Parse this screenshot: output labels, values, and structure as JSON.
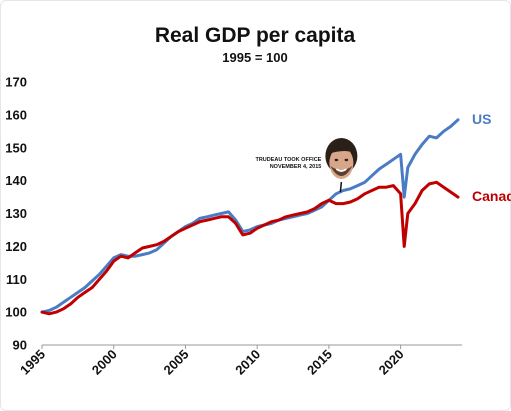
{
  "chart_data": {
    "type": "line",
    "title": "Real GDP per capita",
    "subtitle": "1995 = 100",
    "xlabel": "",
    "ylabel": "",
    "xlim": [
      1995,
      2024
    ],
    "ylim": [
      90,
      170
    ],
    "yticks": [
      "90",
      "100",
      "110",
      "120",
      "130",
      "140",
      "150",
      "160",
      "170"
    ],
    "xticks": [
      "1995",
      "2000",
      "2005",
      "2010",
      "2015",
      "2020"
    ],
    "grid": false,
    "annotation": {
      "line1": "TRUDEAU TOOK OFFICE",
      "line2": "NOVEMBER 4, 2015",
      "x": 2015.8,
      "y": 136.5,
      "image": "portrait-photo"
    },
    "series": [
      {
        "name": "US",
        "color": "#4a7cc4",
        "x": [
          1995,
          1995.5,
          1996,
          1996.5,
          1997,
          1997.5,
          1998,
          1998.5,
          1999,
          1999.5,
          2000,
          2000.5,
          2001,
          2001.5,
          2002,
          2002.5,
          2003,
          2003.5,
          2004,
          2004.5,
          2005,
          2005.5,
          2006,
          2006.5,
          2007,
          2007.5,
          2008,
          2008.5,
          2009,
          2009.5,
          2010,
          2010.5,
          2011,
          2011.5,
          2012,
          2012.5,
          2013,
          2013.5,
          2014,
          2014.5,
          2015,
          2015.5,
          2016,
          2016.5,
          2017,
          2017.5,
          2018,
          2018.5,
          2019,
          2019.5,
          2020,
          2020.25,
          2020.5,
          2021,
          2021.5,
          2022,
          2022.5,
          2023,
          2023.5,
          2024
        ],
        "values": [
          100,
          100.5,
          101.5,
          103,
          104.5,
          106,
          107.5,
          109.5,
          111.5,
          114,
          116.5,
          117.5,
          117,
          117,
          117.5,
          118,
          119,
          121,
          123,
          124.5,
          126,
          127,
          128.5,
          129,
          129.5,
          130,
          130.5,
          128,
          124.5,
          125,
          126,
          126.5,
          127,
          128,
          128.5,
          129,
          129.5,
          130,
          131,
          132,
          134,
          136,
          137,
          137.5,
          138.5,
          139.5,
          141.5,
          143.5,
          145,
          146.5,
          148,
          135,
          144,
          148,
          151,
          153.5,
          153,
          155,
          156.5,
          158.5
        ]
      },
      {
        "name": "Canada",
        "color": "#c00000",
        "x": [
          1995,
          1995.5,
          1996,
          1996.5,
          1997,
          1997.5,
          1998,
          1998.5,
          1999,
          1999.5,
          2000,
          2000.5,
          2001,
          2001.5,
          2002,
          2002.5,
          2003,
          2003.5,
          2004,
          2004.5,
          2005,
          2005.5,
          2006,
          2006.5,
          2007,
          2007.5,
          2008,
          2008.5,
          2009,
          2009.5,
          2010,
          2010.5,
          2011,
          2011.5,
          2012,
          2012.5,
          2013,
          2013.5,
          2014,
          2014.5,
          2015,
          2015.5,
          2016,
          2016.5,
          2017,
          2017.5,
          2018,
          2018.5,
          2019,
          2019.5,
          2020,
          2020.25,
          2020.5,
          2021,
          2021.5,
          2022,
          2022.5,
          2023,
          2023.5,
          2024
        ],
        "values": [
          100,
          99.5,
          100,
          101,
          102.5,
          104.5,
          106,
          107.5,
          110,
          112.5,
          115.5,
          117,
          116.5,
          118,
          119.5,
          120,
          120.5,
          121.5,
          123,
          124.5,
          125.5,
          126.5,
          127.5,
          128,
          128.5,
          129,
          129,
          127,
          123.5,
          124,
          125.5,
          126.5,
          127.5,
          128,
          129,
          129.5,
          130,
          130.5,
          131.5,
          133,
          134,
          133,
          133,
          133.5,
          134.5,
          136,
          137,
          138,
          138,
          138.5,
          136,
          120,
          130,
          133,
          137,
          139,
          139.5,
          138,
          136.5,
          135
        ]
      }
    ]
  }
}
